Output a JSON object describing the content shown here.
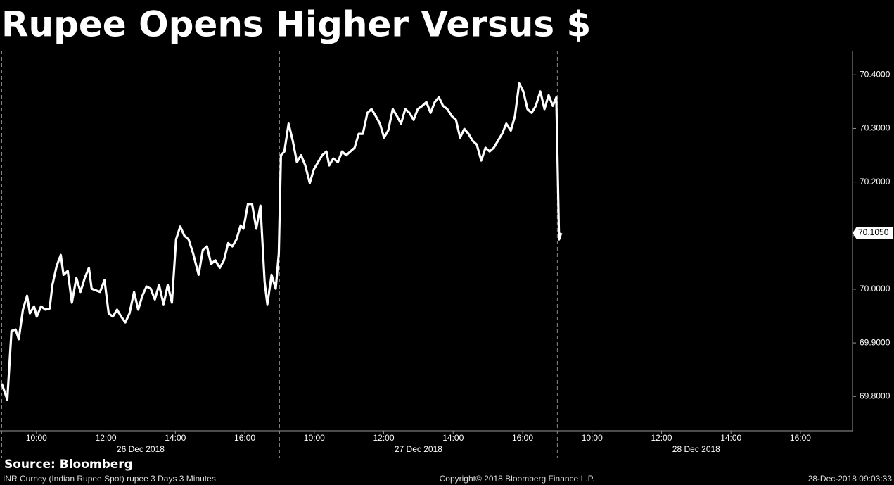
{
  "chart_data": {
    "type": "line",
    "title": "Rupee Opens Higher Versus $",
    "source": "Source: Bloomberg",
    "footer_left": "INR Curncy (Indian Rupee Spot) rupee 3 Days 3 Minutes",
    "footer_center": "Copyright© 2018 Bloomberg Finance L.P.",
    "footer_right": "28-Dec-2018 09:03:33",
    "color": "#ffffff",
    "x": [
      0,
      0.16,
      0.28,
      0.4,
      0.49,
      0.61,
      0.73,
      0.81,
      0.93,
      1.01,
      1.13,
      1.26,
      1.38,
      1.46,
      1.58,
      1.7,
      1.78,
      1.9,
      2.02,
      2.15,
      2.27,
      2.39,
      2.51,
      2.59,
      2.71,
      2.83,
      2.96,
      3.08,
      3.2,
      3.32,
      3.44,
      3.56,
      3.68,
      3.81,
      3.93,
      4.05,
      4.17,
      4.29,
      4.41,
      4.53,
      4.66,
      4.78,
      4.9,
      5.02,
      5.14,
      5.26,
      5.38,
      5.51,
      5.67,
      5.79,
      5.91,
      6.03,
      6.15,
      6.28,
      6.4,
      6.52,
      6.64,
      6.76,
      6.88,
      6.96,
      7.09,
      7.21,
      7.33,
      7.45,
      7.57,
      7.65,
      7.77,
      7.89,
      7.98,
      8.04,
      8.14,
      8.26,
      8.38,
      8.5,
      8.62,
      8.74,
      8.87,
      8.99,
      9.11,
      9.23,
      9.35,
      9.43,
      9.55,
      9.68,
      9.8,
      9.92,
      10.04,
      10.16,
      10.28,
      10.4,
      10.53,
      10.65,
      10.77,
      10.89,
      11.01,
      11.13,
      11.26,
      11.38,
      11.5,
      11.62,
      11.74,
      11.86,
      11.98,
      12.11,
      12.23,
      12.35,
      12.47,
      12.59,
      12.71,
      12.83,
      12.96,
      13.08,
      13.2,
      13.32,
      13.44,
      13.56,
      13.68,
      13.81,
      13.93,
      14.05,
      14.17,
      14.29,
      14.41,
      14.53,
      14.66,
      14.78,
      14.9,
      15.02,
      15.14,
      15.26,
      15.38,
      15.51,
      15.63,
      15.75,
      15.87,
      15.97,
      16.05,
      16.11
    ],
    "values": [
      69.824,
      69.794,
      69.922,
      69.925,
      69.907,
      69.962,
      69.988,
      69.955,
      69.968,
      69.949,
      69.968,
      69.962,
      69.964,
      70.008,
      70.043,
      70.064,
      70.027,
      70.034,
      69.975,
      70.021,
      69.995,
      70.021,
      70.04,
      70.001,
      69.998,
      69.995,
      70.017,
      69.955,
      69.949,
      69.962,
      69.949,
      69.938,
      69.955,
      69.995,
      69.962,
      69.988,
      70.005,
      70.001,
      69.981,
      70.008,
      69.972,
      70.008,
      69.975,
      70.093,
      70.117,
      70.1,
      70.093,
      70.067,
      70.027,
      70.073,
      70.08,
      70.047,
      70.054,
      70.04,
      70.054,
      70.086,
      70.08,
      70.093,
      70.119,
      70.113,
      70.159,
      70.159,
      70.113,
      70.156,
      70.014,
      69.972,
      70.027,
      70.001,
      70.067,
      70.25,
      70.257,
      70.309,
      70.277,
      70.237,
      70.25,
      70.231,
      70.198,
      70.224,
      70.237,
      70.25,
      70.257,
      70.231,
      70.244,
      70.237,
      70.257,
      70.25,
      70.257,
      70.264,
      70.29,
      70.29,
      70.329,
      70.336,
      70.323,
      70.309,
      70.283,
      70.296,
      70.336,
      70.323,
      70.309,
      70.336,
      70.329,
      70.316,
      70.336,
      70.342,
      70.349,
      70.329,
      70.349,
      70.358,
      70.342,
      70.336,
      70.323,
      70.316,
      70.283,
      70.299,
      70.29,
      70.277,
      70.27,
      70.24,
      70.264,
      70.257,
      70.264,
      70.277,
      70.29,
      70.309,
      70.296,
      70.323,
      70.384,
      70.369,
      70.336,
      70.329,
      70.342,
      70.369,
      70.336,
      70.362,
      70.342,
      70.358,
      70.093,
      70.105
    ],
    "last_price": {
      "value": 70.105,
      "label": "70.1050"
    },
    "xlim": [
      -0.05,
      24.5
    ],
    "xticks": [
      {
        "value": 1,
        "label": "10:00"
      },
      {
        "value": 3,
        "label": "12:00"
      },
      {
        "value": 5,
        "label": "14:00"
      },
      {
        "value": 7,
        "label": "16:00"
      },
      {
        "value": 9,
        "label": "10:00"
      },
      {
        "value": 11,
        "label": "12:00"
      },
      {
        "value": 13,
        "label": "14:00"
      },
      {
        "value": 15,
        "label": "16:00"
      },
      {
        "value": 17,
        "label": "10:00"
      },
      {
        "value": 19,
        "label": "12:00"
      },
      {
        "value": 21,
        "label": "14:00"
      },
      {
        "value": 23,
        "label": "16:00"
      }
    ],
    "xgroups": [
      {
        "value": 4,
        "label": "26 Dec 2018"
      },
      {
        "value": 12,
        "label": "27 Dec 2018"
      },
      {
        "value": 20,
        "label": "28 Dec 2018"
      }
    ],
    "xdividers": [
      0,
      8,
      16
    ],
    "ylim": [
      69.736,
      70.445
    ],
    "yticks": [
      {
        "value": 69.8,
        "label": "69.8000"
      },
      {
        "value": 69.9,
        "label": "69.9000"
      },
      {
        "value": 70,
        "label": "70.0000"
      },
      {
        "value": 70.1,
        "label": "70.1000"
      },
      {
        "value": 70.2,
        "label": "70.2000"
      },
      {
        "value": 70.3,
        "label": "70.3000"
      },
      {
        "value": 70.4,
        "label": "70.4000"
      }
    ]
  }
}
